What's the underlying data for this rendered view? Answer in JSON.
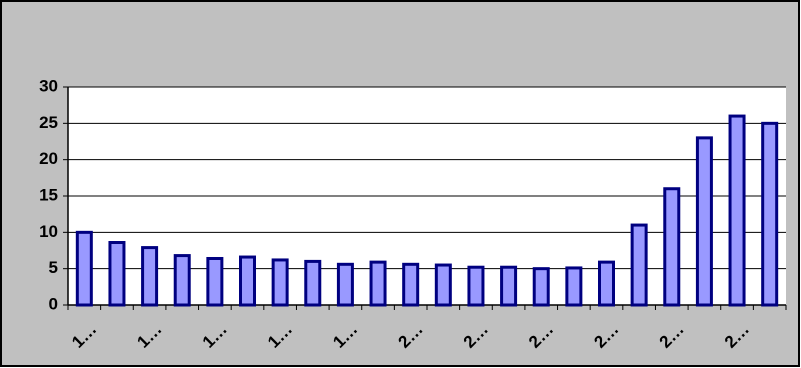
{
  "chart_data": {
    "type": "bar",
    "categories": [
      "1…",
      null,
      "1…",
      null,
      "1…",
      null,
      "1…",
      null,
      "1…",
      null,
      "2…",
      null,
      "2…",
      null,
      "2…",
      null,
      "2…",
      null,
      "2…",
      null,
      "2…",
      null
    ],
    "values": [
      10,
      8.6,
      7.9,
      6.8,
      6.4,
      6.6,
      6.2,
      6,
      5.6,
      5.9,
      5.6,
      5.5,
      5.2,
      5.2,
      5,
      5.1,
      5.9,
      11,
      16,
      23,
      26,
      25
    ],
    "color": "#9999ff",
    "edge_color": "#000080",
    "ylim": [
      0,
      30
    ],
    "yticks": [
      0,
      5,
      10,
      15,
      20,
      25,
      30
    ],
    "grid": true
  }
}
